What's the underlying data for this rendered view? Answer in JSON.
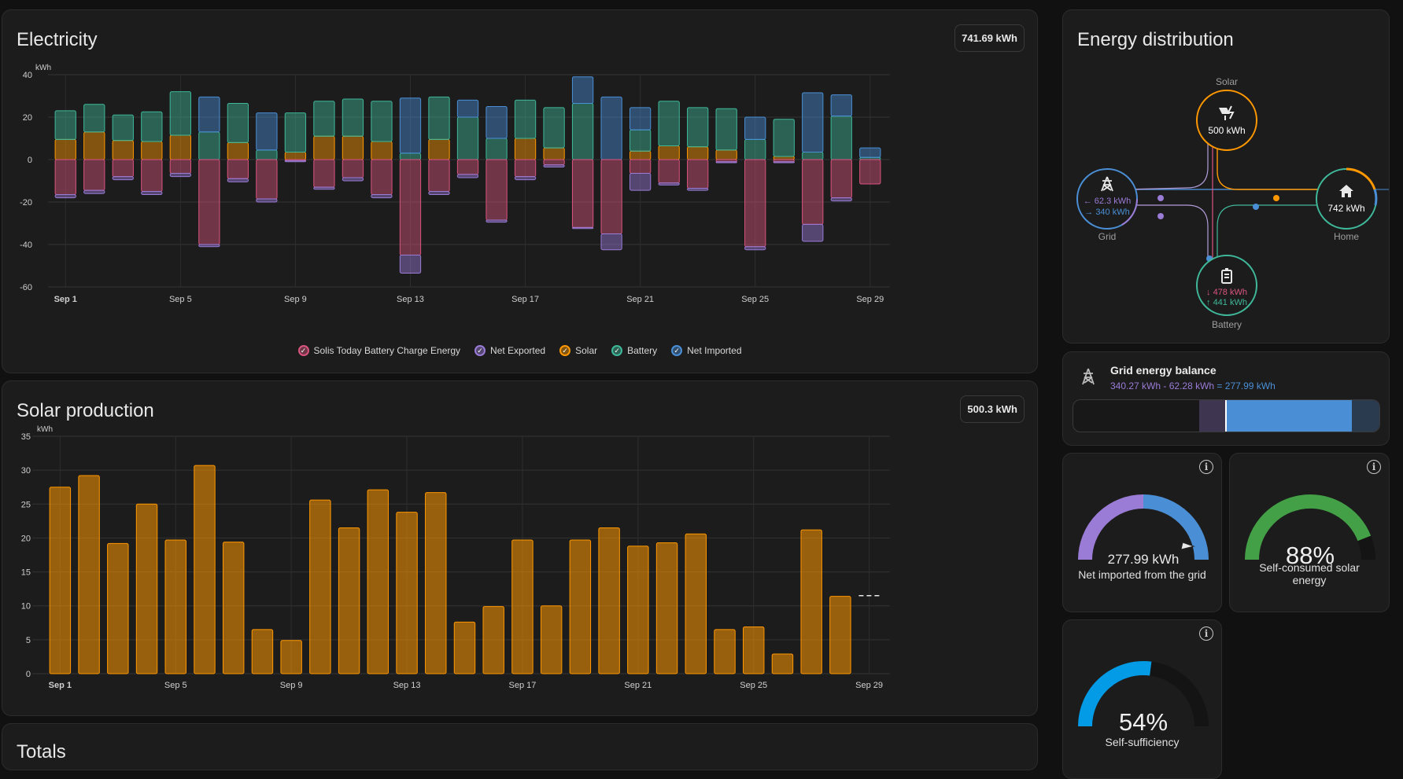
{
  "electricity": {
    "title": "Electricity",
    "total": "741.69 kWh",
    "unit": "kWh",
    "legend": [
      {
        "label": "Solis Today Battery Charge Energy",
        "color": "#d9547f"
      },
      {
        "label": "Net Exported",
        "color": "#9a7bd6"
      },
      {
        "label": "Solar",
        "color": "#ff9800"
      },
      {
        "label": "Battery",
        "color": "#3fb89a"
      },
      {
        "label": "Net Imported",
        "color": "#4a8fd6"
      }
    ],
    "chart_data": {
      "type": "bar",
      "ylim": [
        -60,
        40
      ],
      "yticks": [
        40,
        20,
        0,
        -20,
        -40,
        -60
      ],
      "xtick_labels": [
        "Sep 1",
        "Sep 5",
        "Sep 9",
        "Sep 13",
        "Sep 17",
        "Sep 21",
        "Sep 25",
        "Sep 29"
      ],
      "xtick_days": [
        1,
        5,
        9,
        13,
        17,
        21,
        25,
        29
      ],
      "days": [
        1,
        2,
        3,
        4,
        5,
        6,
        7,
        8,
        9,
        10,
        11,
        12,
        13,
        14,
        15,
        16,
        17,
        18,
        19,
        20,
        21,
        22,
        23,
        24,
        25,
        26,
        27,
        28,
        29
      ],
      "series": [
        {
          "name": "Solar",
          "color": "#ff9800",
          "values": [
            9.5,
            13,
            9,
            8.5,
            11.5,
            0,
            8,
            0,
            3.5,
            11,
            11,
            8.5,
            0,
            9.5,
            0,
            0,
            10,
            5.5,
            0,
            0,
            4,
            6.5,
            6,
            4.5,
            0,
            1.5,
            0,
            0,
            0
          ]
        },
        {
          "name": "Battery",
          "color": "#3fb89a",
          "values": [
            13.5,
            13,
            12,
            14,
            20.5,
            13,
            18.5,
            4.5,
            18.5,
            16.5,
            17.5,
            19,
            3,
            20,
            20,
            10,
            18,
            19,
            26.5,
            0,
            10,
            21,
            18.5,
            19.5,
            9.5,
            17.5,
            3.5,
            20.5,
            1
          ]
        },
        {
          "name": "Net Imported",
          "color": "#4a8fd6",
          "values": [
            0,
            0,
            0,
            0,
            0,
            16.5,
            0,
            17.5,
            0,
            0,
            0,
            0,
            26,
            0,
            8,
            15,
            0,
            0,
            12.5,
            29.5,
            10.5,
            0,
            0,
            0,
            10.5,
            0,
            28,
            10,
            4.5
          ]
        },
        {
          "name": "Solis Today Battery Charge Energy",
          "color": "#d9547f",
          "values": [
            -16.5,
            -14.5,
            -8,
            -15,
            -6.5,
            -40,
            -9,
            -18.5,
            -0.5,
            -13,
            -8.5,
            -16.5,
            -45,
            -15,
            -7,
            -28.5,
            -8,
            -2.5,
            -32,
            -35,
            -6.5,
            -11,
            -13.5,
            -1,
            -41,
            -1,
            -30.5,
            -18,
            -11.5
          ]
        },
        {
          "name": "Net Exported",
          "color": "#9a7bd6",
          "values": [
            -1.5,
            -1.5,
            -1.5,
            -1.5,
            -1.5,
            -1,
            -1.5,
            -1.5,
            -0.5,
            -1,
            -1.5,
            -1.5,
            -8.5,
            -1.5,
            -1.5,
            -1,
            -1.5,
            -1,
            -0.5,
            -7.5,
            -8,
            -1,
            -1,
            -0.5,
            -1.5,
            -0.5,
            -8,
            -1.5,
            0
          ]
        }
      ]
    }
  },
  "solar": {
    "title": "Solar production",
    "total": "500.3 kWh",
    "unit": "kWh",
    "chart_data": {
      "type": "bar",
      "ylim": [
        0,
        35
      ],
      "yticks": [
        35,
        30,
        25,
        20,
        15,
        10,
        5,
        0
      ],
      "xtick_labels": [
        "Sep 1",
        "Sep 5",
        "Sep 9",
        "Sep 13",
        "Sep 17",
        "Sep 21",
        "Sep 25",
        "Sep 29"
      ],
      "xtick_days": [
        1,
        5,
        9,
        13,
        17,
        21,
        25,
        29
      ],
      "days": [
        1,
        2,
        3,
        4,
        5,
        6,
        7,
        8,
        9,
        10,
        11,
        12,
        13,
        14,
        15,
        16,
        17,
        18,
        19,
        20,
        21,
        22,
        23,
        24,
        25,
        26,
        27,
        28
      ],
      "values": [
        27.5,
        29.2,
        19.2,
        25,
        19.7,
        30.7,
        19.4,
        6.5,
        4.9,
        25.6,
        21.5,
        27.1,
        23.8,
        26.7,
        7.6,
        9.9,
        19.7,
        10,
        19.7,
        21.5,
        18.8,
        19.3,
        20.6,
        6.5,
        6.9,
        2.9,
        21.2,
        11.4
      ],
      "forecast": {
        "day": 29,
        "value": 11.5
      },
      "color": "#ff9800"
    }
  },
  "totals": {
    "title": "Totals"
  },
  "distribution": {
    "title": "Energy distribution",
    "solar": {
      "label": "Solar",
      "value": "500 kWh"
    },
    "grid": {
      "label": "Grid",
      "import": "62.3 kWh",
      "export": "340 kWh"
    },
    "home": {
      "label": "Home",
      "value": "742 kWh"
    },
    "battery": {
      "label": "Battery",
      "in": "478 kWh",
      "out": "441 kWh"
    }
  },
  "grid_balance": {
    "title": "Grid energy balance",
    "formula_a": "340.27 kWh",
    "formula_sep": " - ",
    "formula_b": "62.28 kWh",
    "formula_eq": " = ",
    "formula_c": "277.99 kWh",
    "exported_fraction": 0.2,
    "imported_fraction": 0.8
  },
  "gauges": {
    "net_imported": {
      "value": "277.99 kWh",
      "label": "Net imported from the grid"
    },
    "self_consumed": {
      "value": "88%",
      "percent": 88,
      "label": "Self-consumed solar energy"
    },
    "self_sufficiency": {
      "value": "54%",
      "percent": 54,
      "label": "Self-sufficiency"
    }
  },
  "colors": {
    "solar": "#ff9800",
    "battery": "#3fb89a",
    "grid_import": "#4a8fd6",
    "grid_export": "#9a7bd6",
    "battery_charge": "#d9547f",
    "gauge_green": "#43a047",
    "gauge_blue": "#039be5"
  }
}
